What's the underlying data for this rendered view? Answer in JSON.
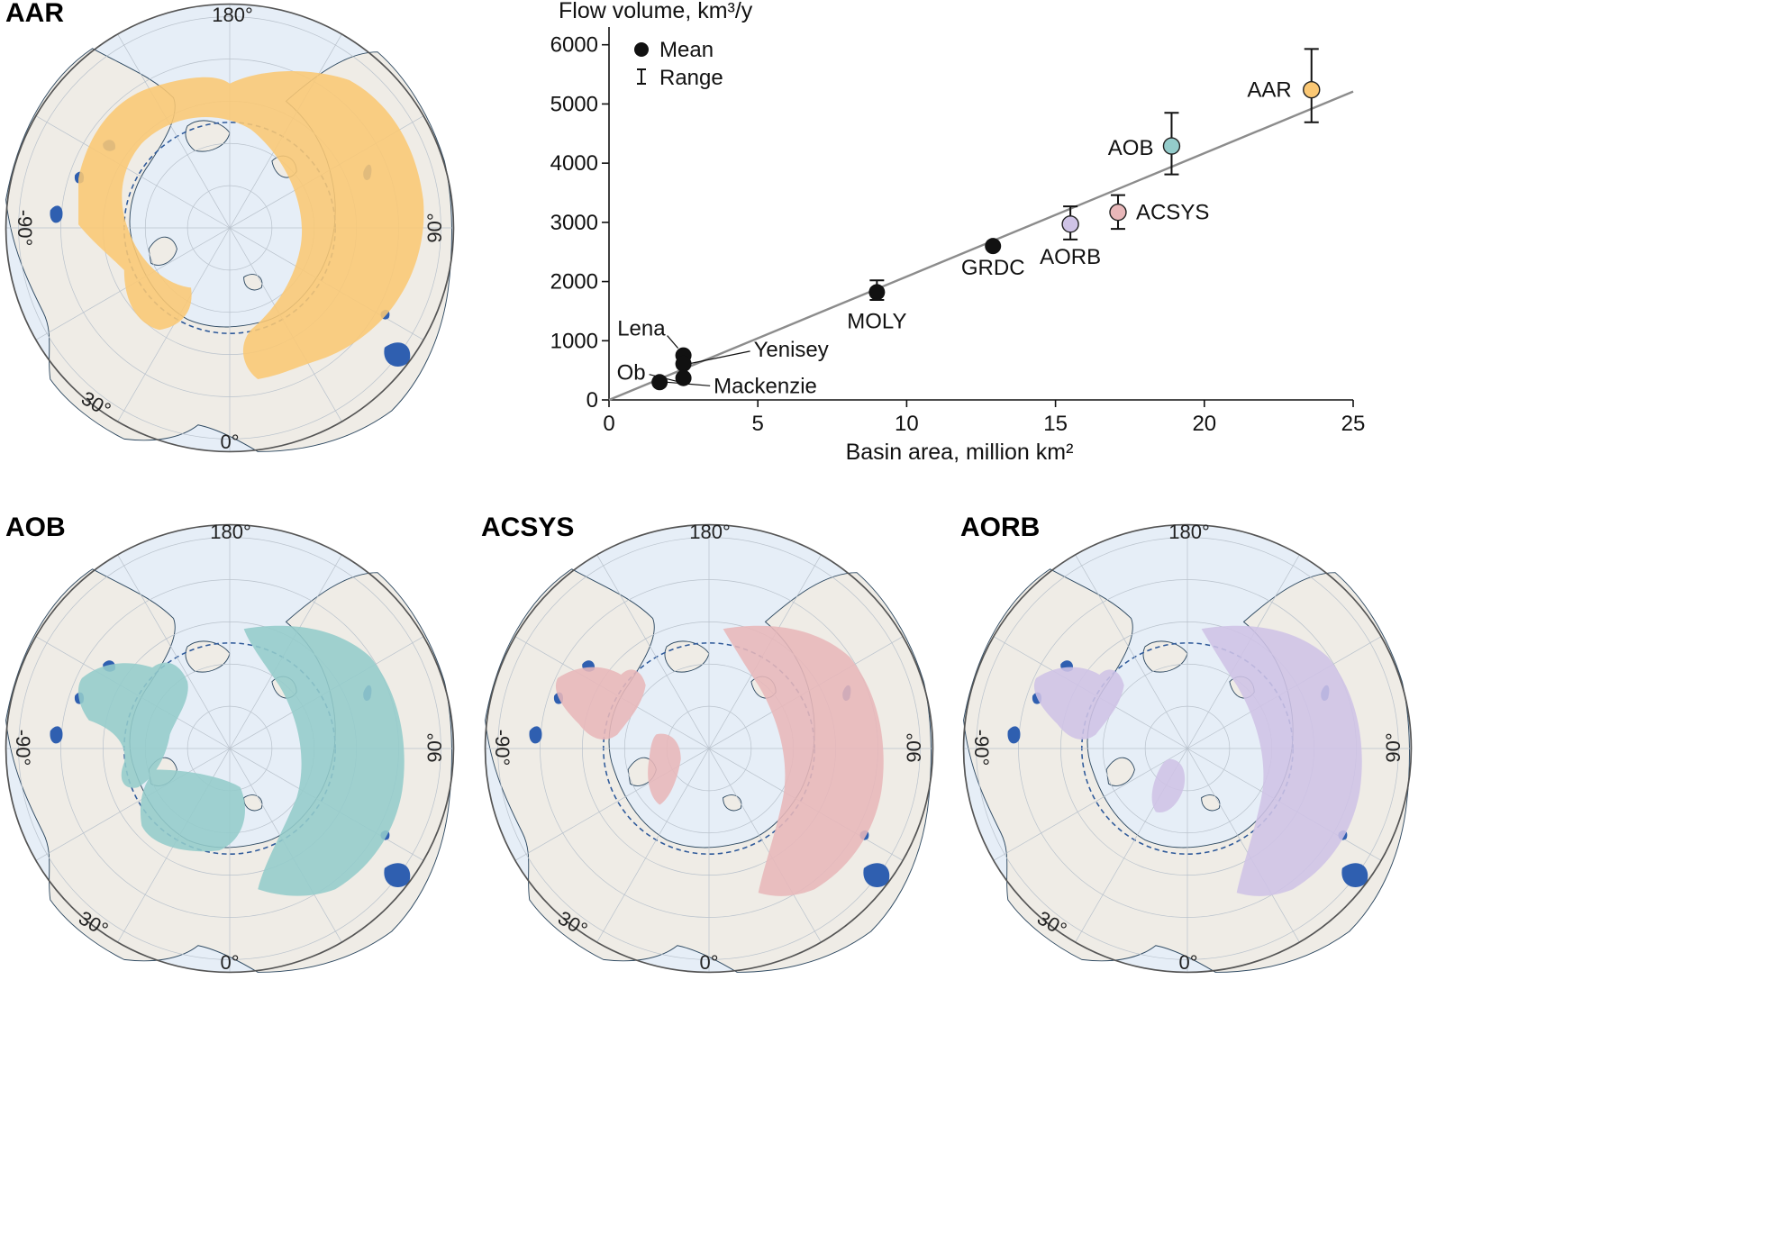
{
  "panels": {
    "aar": {
      "title": "AAR",
      "fill": "#fbc874"
    },
    "aob": {
      "title": "AOB",
      "fill": "#94cccb"
    },
    "acsys": {
      "title": "ACSYS",
      "fill": "#e8b7b9"
    },
    "aorb": {
      "title": "AORB",
      "fill": "#cfc3e6"
    }
  },
  "map_labels": {
    "top": "180°",
    "left": "-90°",
    "right": "90°",
    "bottom": "0°",
    "lower_left": "30°"
  },
  "map_colors": {
    "ocean": "#e6eef7",
    "land": "#efece6",
    "lakes": "#2f5fb0",
    "coast": "#2f4a62",
    "arctic_circle": "#2f5a9a"
  },
  "chart_data": {
    "type": "scatter",
    "ylabel": "Flow volume, km³/y",
    "xlabel": "Basin area, million km²",
    "xlim": [
      0,
      25
    ],
    "ylim": [
      0,
      6300
    ],
    "x_ticks": [
      0,
      5,
      10,
      15,
      20,
      25
    ],
    "y_ticks": [
      0,
      1000,
      2000,
      3000,
      4000,
      5000,
      6000
    ],
    "legend": {
      "position": "top-left",
      "mean_label": "Mean",
      "range_label": "Range"
    },
    "trend_line": {
      "x": [
        0,
        25
      ],
      "y": [
        0,
        5210
      ],
      "color": "#8c8c8c"
    },
    "points": [
      {
        "label": "Lena",
        "x": 2.5,
        "y": 600,
        "color": "#111111"
      },
      {
        "label": "Yenisey",
        "x": 2.5,
        "y": 580,
        "color": "#111111"
      },
      {
        "label": "Ob",
        "x": 2.5,
        "y": 400,
        "color": "#111111"
      },
      {
        "label": "Mackenzie",
        "x": 1.7,
        "y": 300,
        "color": "#111111"
      },
      {
        "label": "MOLY",
        "x": 9.0,
        "y": 1820,
        "ymin": 1690,
        "ymax": 2020,
        "color": "#111111"
      },
      {
        "label": "GRDC",
        "x": 12.9,
        "y": 2600,
        "color": "#111111"
      },
      {
        "label": "AORB",
        "x": 15.5,
        "y": 2970,
        "ymin": 2710,
        "ymax": 3270,
        "color": "#cfc3e6"
      },
      {
        "label": "ACSYS",
        "x": 17.1,
        "y": 3170,
        "ymin": 2890,
        "ymax": 3460,
        "color": "#e8b7b9"
      },
      {
        "label": "AOB",
        "x": 18.9,
        "y": 4290,
        "ymin": 3810,
        "ymax": 4850,
        "color": "#94cccb"
      },
      {
        "label": "AAR",
        "x": 23.6,
        "y": 5240,
        "ymin": 4690,
        "ymax": 5930,
        "color": "#fbc874"
      }
    ]
  }
}
